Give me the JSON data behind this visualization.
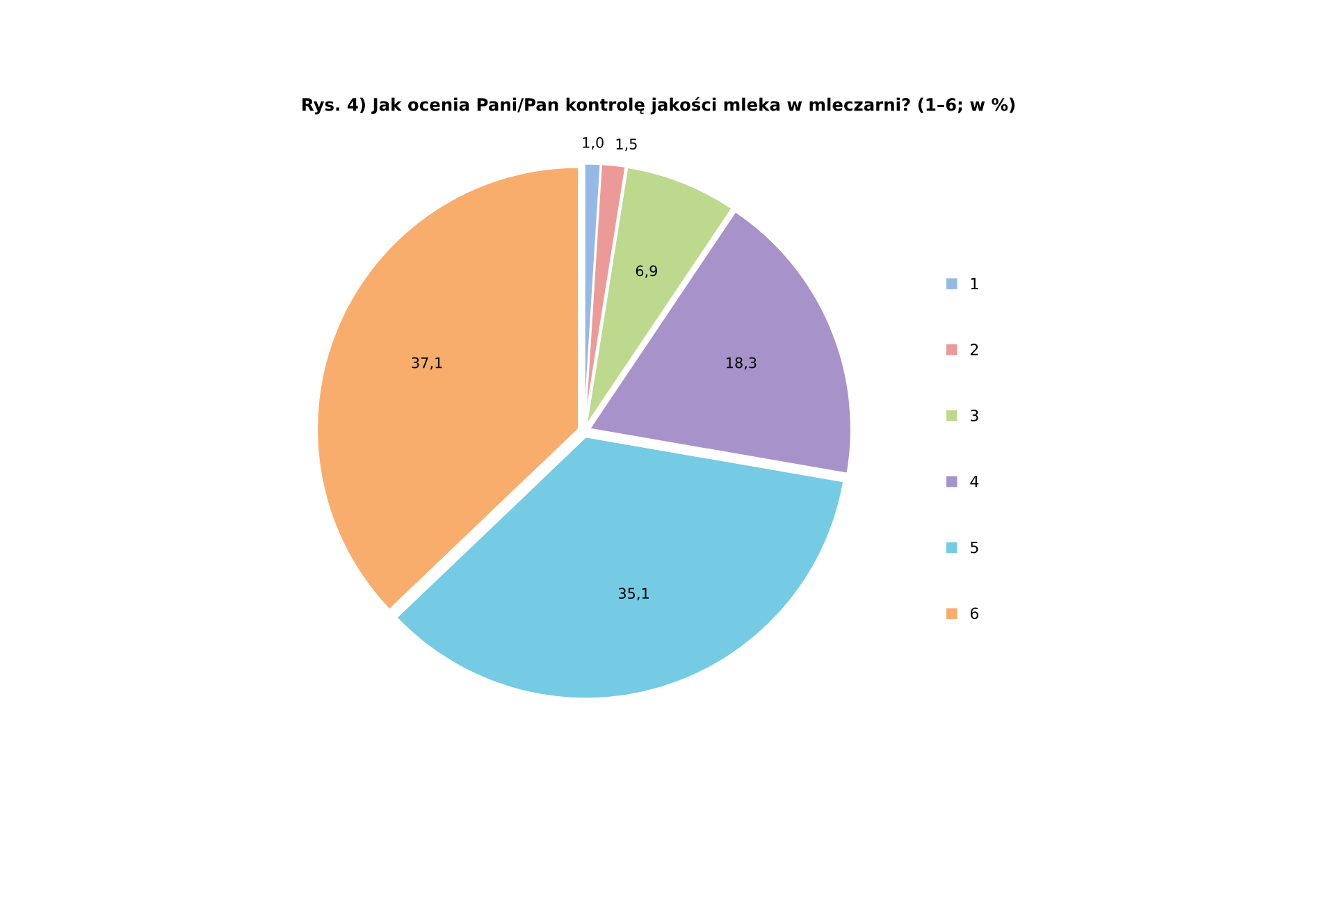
{
  "chart_data": {
    "type": "pie",
    "title": "Rys. 4) Jak ocenia Pani/Pan kontrolę jakości mleka w mleczarni? (1–6; w %)",
    "categories": [
      "1",
      "2",
      "3",
      "4",
      "5",
      "6"
    ],
    "values": [
      1.0,
      1.5,
      6.9,
      18.3,
      35.1,
      37.1
    ],
    "value_labels": [
      "1,0",
      "1,5",
      "6,9",
      "18,3",
      "35,1",
      "37,1"
    ],
    "colors": [
      "#95b9e6",
      "#ec9a98",
      "#bcd98e",
      "#a793c9",
      "#74cbe3",
      "#f8ad6c"
    ],
    "legend": "right"
  }
}
